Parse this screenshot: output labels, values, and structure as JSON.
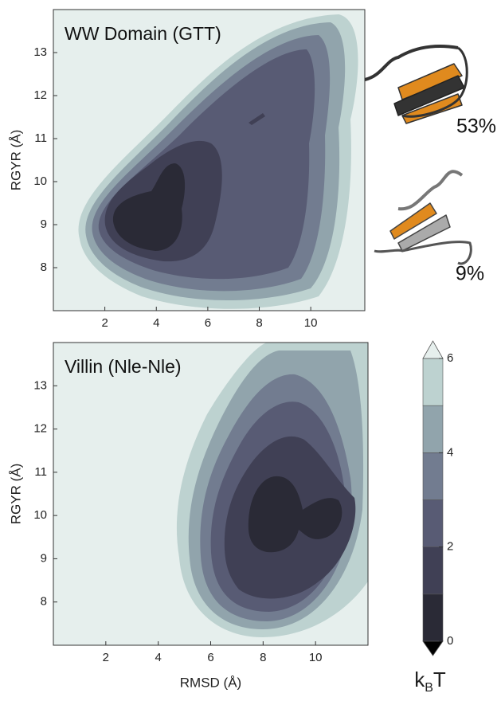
{
  "chart_data": [
    {
      "type": "contour",
      "title": "WW Domain (GTT)",
      "ylabel": "RGYR (Å)",
      "xlim": [
        0,
        12.1
      ],
      "ylim": [
        7,
        14
      ],
      "xticks": [
        2,
        4,
        6,
        8,
        10
      ],
      "yticks": [
        8,
        9,
        10,
        11,
        12,
        13
      ],
      "annotations": [
        "53%",
        "9%"
      ]
    },
    {
      "type": "contour",
      "title": "Villin (Nle-Nle)",
      "xlabel": "RMSD (Å)",
      "ylabel": "RGYR (Å)",
      "xlim": [
        0,
        12
      ],
      "ylim": [
        7,
        14
      ],
      "xticks": [
        2,
        4,
        6,
        8,
        10
      ],
      "yticks": [
        8,
        9,
        10,
        11,
        12,
        13
      ]
    },
    {
      "type": "colorbar",
      "lim": [
        0,
        6
      ],
      "ticks": [
        0,
        2,
        4,
        6
      ],
      "levels": [
        0,
        1,
        2,
        3,
        4,
        5,
        6
      ],
      "colors": [
        "#2a2a36",
        "#404055",
        "#585b74",
        "#727c90",
        "#91a4ac",
        "#bdd2d0"
      ],
      "under_color": "#000000",
      "over_color": "#e6efed",
      "label": {
        "main": "k",
        "sub": "B",
        "unit": "T"
      }
    }
  ]
}
